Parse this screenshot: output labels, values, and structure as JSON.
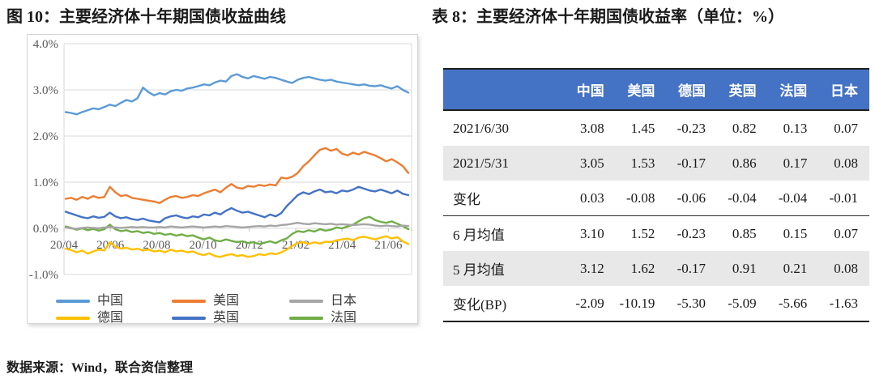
{
  "figure": {
    "title": "图 10：主要经济体十年期国债收益曲线",
    "source_note": "数据来源：Wind，联合资信整理"
  },
  "table": {
    "title": "表 8：主要经济体十年期国债收益率（单位：%）",
    "header_bg": "#4472C4",
    "shade_bg": "#E8E8E8",
    "columns": [
      "",
      "中国",
      "美国",
      "德国",
      "英国",
      "法国",
      "日本"
    ],
    "rows": [
      {
        "label": "2021/6/30",
        "values": [
          "3.08",
          "1.45",
          "-0.23",
          "0.82",
          "0.13",
          "0.07"
        ],
        "shaded": false,
        "divider_below": false
      },
      {
        "label": "2021/5/31",
        "values": [
          "3.05",
          "1.53",
          "-0.17",
          "0.86",
          "0.17",
          "0.08"
        ],
        "shaded": true,
        "divider_below": false
      },
      {
        "label": "变化",
        "values": [
          "0.03",
          "-0.08",
          "-0.06",
          "-0.04",
          "-0.04",
          "-0.01"
        ],
        "shaded": false,
        "divider_below": true
      },
      {
        "label": "6 月均值",
        "values": [
          "3.10",
          "1.52",
          "-0.23",
          "0.85",
          "0.15",
          "0.07"
        ],
        "shaded": false,
        "divider_below": false
      },
      {
        "label": "5 月均值",
        "values": [
          "3.12",
          "1.62",
          "-0.17",
          "0.91",
          "0.21",
          "0.08"
        ],
        "shaded": true,
        "divider_below": false
      },
      {
        "label": "变化(BP)",
        "values": [
          "-2.09",
          "-10.19",
          "-5.30",
          "-5.09",
          "-5.66",
          "-1.63"
        ],
        "shaded": false,
        "divider_below": false
      }
    ]
  },
  "chart_data": {
    "type": "line",
    "title": "主要经济体十年期国债收益曲线",
    "xlabel": "",
    "ylabel": "",
    "ylim": [
      -1,
      4
    ],
    "grid": true,
    "legend_position": "bottom",
    "y_ticks": [
      "4.0%",
      "3.0%",
      "2.0%",
      "1.0%",
      "0.0%",
      "-1.0%"
    ],
    "y_tick_values": [
      4,
      3,
      2,
      1,
      0,
      -1
    ],
    "x_ticks": [
      "20/04",
      "20/06",
      "20/08",
      "20/10",
      "20/12",
      "21/02",
      "21/04",
      "21/06"
    ],
    "axis_label_color": "#595959",
    "gridline_color": "#D9D9D9",
    "legend_rows": [
      [
        "中国",
        "美国",
        "日本"
      ],
      [
        "德国",
        "英国",
        "法国"
      ]
    ],
    "series": [
      {
        "name": "中国",
        "key": "china",
        "color": "#5B9BD5",
        "values": [
          2.52,
          2.5,
          2.47,
          2.52,
          2.56,
          2.6,
          2.58,
          2.63,
          2.68,
          2.65,
          2.72,
          2.78,
          2.75,
          2.82,
          3.05,
          2.95,
          2.88,
          2.93,
          2.9,
          2.97,
          3.0,
          2.98,
          3.03,
          3.05,
          3.08,
          3.12,
          3.1,
          3.16,
          3.2,
          3.18,
          3.3,
          3.34,
          3.28,
          3.25,
          3.3,
          3.27,
          3.24,
          3.28,
          3.26,
          3.22,
          3.18,
          3.15,
          3.22,
          3.26,
          3.28,
          3.25,
          3.22,
          3.2,
          3.22,
          3.18,
          3.16,
          3.14,
          3.12,
          3.1,
          3.12,
          3.09,
          3.08,
          3.1,
          3.06,
          3.03,
          3.08,
          3.0,
          2.94
        ]
      },
      {
        "name": "美国",
        "key": "us",
        "color": "#ED7D31",
        "values": [
          0.64,
          0.66,
          0.62,
          0.68,
          0.64,
          0.7,
          0.66,
          0.68,
          0.9,
          0.78,
          0.7,
          0.72,
          0.66,
          0.64,
          0.62,
          0.6,
          0.58,
          0.55,
          0.62,
          0.68,
          0.7,
          0.66,
          0.68,
          0.72,
          0.7,
          0.76,
          0.8,
          0.84,
          0.78,
          0.88,
          0.96,
          0.88,
          0.86,
          0.92,
          0.9,
          0.94,
          0.92,
          0.95,
          0.93,
          1.1,
          1.08,
          1.12,
          1.2,
          1.35,
          1.45,
          1.58,
          1.7,
          1.74,
          1.68,
          1.72,
          1.62,
          1.58,
          1.64,
          1.6,
          1.66,
          1.62,
          1.58,
          1.52,
          1.45,
          1.5,
          1.43,
          1.35,
          1.2
        ]
      },
      {
        "name": "德国",
        "key": "germany",
        "color": "#FFC000",
        "values": [
          -0.44,
          -0.47,
          -0.52,
          -0.48,
          -0.55,
          -0.5,
          -0.46,
          -0.48,
          -0.3,
          -0.4,
          -0.44,
          -0.42,
          -0.46,
          -0.44,
          -0.48,
          -0.46,
          -0.5,
          -0.48,
          -0.52,
          -0.46,
          -0.5,
          -0.48,
          -0.52,
          -0.5,
          -0.55,
          -0.58,
          -0.54,
          -0.6,
          -0.62,
          -0.58,
          -0.56,
          -0.6,
          -0.58,
          -0.62,
          -0.6,
          -0.56,
          -0.58,
          -0.54,
          -0.56,
          -0.52,
          -0.46,
          -0.38,
          -0.32,
          -0.3,
          -0.34,
          -0.3,
          -0.33,
          -0.29,
          -0.3,
          -0.26,
          -0.24,
          -0.22,
          -0.26,
          -0.2,
          -0.18,
          -0.21,
          -0.24,
          -0.2,
          -0.17,
          -0.22,
          -0.19,
          -0.28,
          -0.34
        ]
      },
      {
        "name": "英国",
        "key": "uk",
        "color": "#4472C4",
        "values": [
          0.36,
          0.32,
          0.28,
          0.24,
          0.22,
          0.26,
          0.23,
          0.25,
          0.34,
          0.26,
          0.22,
          0.24,
          0.2,
          0.18,
          0.21,
          0.17,
          0.15,
          0.13,
          0.22,
          0.26,
          0.28,
          0.24,
          0.22,
          0.26,
          0.24,
          0.3,
          0.28,
          0.34,
          0.3,
          0.38,
          0.44,
          0.38,
          0.34,
          0.36,
          0.32,
          0.28,
          0.24,
          0.3,
          0.26,
          0.33,
          0.48,
          0.6,
          0.72,
          0.78,
          0.74,
          0.8,
          0.84,
          0.78,
          0.8,
          0.76,
          0.82,
          0.8,
          0.84,
          0.9,
          0.86,
          0.82,
          0.8,
          0.84,
          0.8,
          0.76,
          0.82,
          0.75,
          0.72
        ]
      },
      {
        "name": "法国",
        "key": "france",
        "color": "#70AD47",
        "values": [
          0.04,
          0.01,
          -0.03,
          0.0,
          -0.04,
          -0.01,
          -0.05,
          -0.02,
          0.08,
          -0.02,
          -0.06,
          -0.04,
          -0.08,
          -0.06,
          -0.1,
          -0.08,
          -0.12,
          -0.1,
          -0.14,
          -0.12,
          -0.16,
          -0.13,
          -0.17,
          -0.15,
          -0.2,
          -0.24,
          -0.2,
          -0.26,
          -0.28,
          -0.24,
          -0.27,
          -0.3,
          -0.28,
          -0.32,
          -0.3,
          -0.34,
          -0.31,
          -0.28,
          -0.32,
          -0.26,
          -0.22,
          -0.12,
          -0.06,
          -0.08,
          -0.04,
          -0.07,
          -0.02,
          -0.05,
          -0.03,
          0.02,
          0.0,
          0.04,
          0.08,
          0.15,
          0.22,
          0.25,
          0.18,
          0.14,
          0.12,
          0.15,
          0.1,
          0.05,
          -0.02
        ]
      },
      {
        "name": "日本",
        "key": "japan",
        "color": "#A5A5A5",
        "values": [
          0.02,
          0.0,
          -0.01,
          0.01,
          0.02,
          0.01,
          0.0,
          0.02,
          0.03,
          0.02,
          0.01,
          0.02,
          0.03,
          0.02,
          0.03,
          0.02,
          0.02,
          0.03,
          0.02,
          0.04,
          0.03,
          0.02,
          0.03,
          0.04,
          0.03,
          0.02,
          0.03,
          0.04,
          0.03,
          0.05,
          0.04,
          0.03,
          0.02,
          0.03,
          0.04,
          0.05,
          0.04,
          0.06,
          0.05,
          0.07,
          0.08,
          0.1,
          0.12,
          0.1,
          0.09,
          0.11,
          0.1,
          0.09,
          0.1,
          0.08,
          0.09,
          0.08,
          0.07,
          0.08,
          0.09,
          0.08,
          0.06,
          0.05,
          0.06,
          0.05,
          0.04,
          0.06,
          0.05
        ]
      }
    ]
  }
}
